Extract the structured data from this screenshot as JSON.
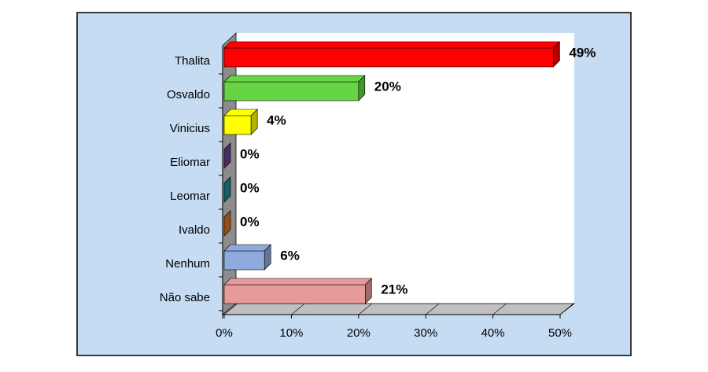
{
  "chart_data": {
    "type": "bar",
    "orientation": "horizontal",
    "categories": [
      "Thalita",
      "Osvaldo",
      "Vinicius",
      "Eliomar",
      "Leomar",
      "Ivaldo",
      "Nenhum",
      "Não sabe"
    ],
    "values": [
      49,
      20,
      4,
      0,
      0,
      0,
      6,
      21
    ],
    "value_labels": [
      "49%",
      "20%",
      "4%",
      "0%",
      "0%",
      "0%",
      "6%",
      "21%"
    ],
    "colors": [
      "#ff0000",
      "#66d444",
      "#ffff00",
      "#6b3f8f",
      "#1a8a96",
      "#d9731c",
      "#8faadc",
      "#e89a9a"
    ],
    "xlim": [
      0,
      50
    ],
    "xticks": [
      {
        "value": 0,
        "label": "0%"
      },
      {
        "value": 10,
        "label": "10%"
      },
      {
        "value": 20,
        "label": "20%"
      },
      {
        "value": 30,
        "label": "30%"
      },
      {
        "value": 40,
        "label": "40%"
      },
      {
        "value": 50,
        "label": "50%"
      }
    ],
    "grid": true
  }
}
